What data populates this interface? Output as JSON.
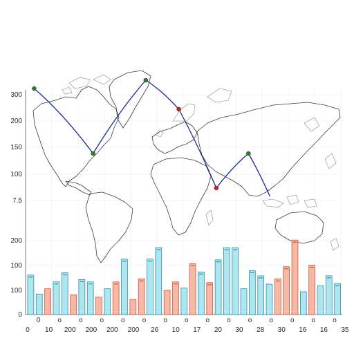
{
  "chart_data": {
    "type": "bar",
    "ytick_labels_upper": [
      "300",
      "200",
      "150",
      "100",
      "7.5"
    ],
    "ytick_labels_lower": [
      "200",
      "100",
      "100",
      "0"
    ],
    "xtick_labels_major": [
      "0",
      "10",
      "200",
      "200",
      "200",
      "200",
      "26",
      "10",
      "17",
      "20",
      "30",
      "28",
      "30",
      "16",
      "16",
      "35"
    ],
    "xtick_labels_minor": [
      "0",
      "o",
      "o",
      "o",
      "o",
      "o",
      "o",
      "o",
      "o",
      "o",
      "o",
      "o",
      "o",
      "o",
      "o"
    ],
    "ylim": [
      0,
      100
    ],
    "grid": true,
    "colors": {
      "bar_blue": "#aee6f0",
      "bar_blue_edge": "#2f8fa8",
      "bar_salmon": "#f7b9a6",
      "bar_salmon_edge": "#c8553d",
      "route": "#1b2a8c",
      "point_green": "#2e7d32",
      "point_red": "#c62828"
    },
    "bars": [
      {
        "value": 52,
        "color": "blue"
      },
      {
        "value": 27,
        "color": "blue"
      },
      {
        "value": 34,
        "color": "salmon"
      },
      {
        "value": 43,
        "color": "blue"
      },
      {
        "value": 55,
        "color": "blue"
      },
      {
        "value": 26,
        "color": "salmon"
      },
      {
        "value": 46,
        "color": "blue"
      },
      {
        "value": 43,
        "color": "blue"
      },
      {
        "value": 23,
        "color": "salmon"
      },
      {
        "value": 34,
        "color": "blue"
      },
      {
        "value": 43,
        "color": "salmon"
      },
      {
        "value": 73,
        "color": "blue"
      },
      {
        "value": 20,
        "color": "salmon"
      },
      {
        "value": 47,
        "color": "salmon"
      },
      {
        "value": 73,
        "color": "blue"
      },
      {
        "value": 88,
        "color": "blue"
      },
      {
        "value": 32,
        "color": "salmon"
      },
      {
        "value": 43,
        "color": "salmon"
      },
      {
        "value": 35,
        "color": "blue"
      },
      {
        "value": 67,
        "color": "salmon"
      },
      {
        "value": 56,
        "color": "blue"
      },
      {
        "value": 42,
        "color": "salmon"
      },
      {
        "value": 72,
        "color": "blue"
      },
      {
        "value": 88,
        "color": "blue"
      },
      {
        "value": 88,
        "color": "blue"
      },
      {
        "value": 34,
        "color": "blue"
      },
      {
        "value": 58,
        "color": "blue"
      },
      {
        "value": 51,
        "color": "blue"
      },
      {
        "value": 40,
        "color": "blue"
      },
      {
        "value": 47,
        "color": "salmon"
      },
      {
        "value": 63,
        "color": "salmon"
      },
      {
        "value": 98,
        "color": "salmon"
      },
      {
        "value": 30,
        "color": "blue"
      },
      {
        "value": 65,
        "color": "salmon"
      },
      {
        "value": 38,
        "color": "blue"
      },
      {
        "value": 51,
        "color": "blue"
      },
      {
        "value": 41,
        "color": "blue"
      }
    ],
    "route_points": [
      {
        "lon": -165,
        "lat": 66,
        "color": "green"
      },
      {
        "lon": -99,
        "lat": 19,
        "color": "green"
      },
      {
        "lon": -40,
        "lat": 72,
        "color": "green"
      },
      {
        "lon": -3,
        "lat": 51,
        "color": "red"
      },
      {
        "lon": 39,
        "lat": -6,
        "color": "red"
      },
      {
        "lon": 75,
        "lat": 19,
        "color": "green"
      },
      {
        "lon": 99,
        "lat": -12,
        "color": "none"
      }
    ],
    "routes": [
      [
        0,
        1
      ],
      [
        1,
        2
      ],
      [
        2,
        3
      ],
      [
        3,
        4
      ],
      [
        4,
        5
      ],
      [
        5,
        6
      ]
    ]
  }
}
